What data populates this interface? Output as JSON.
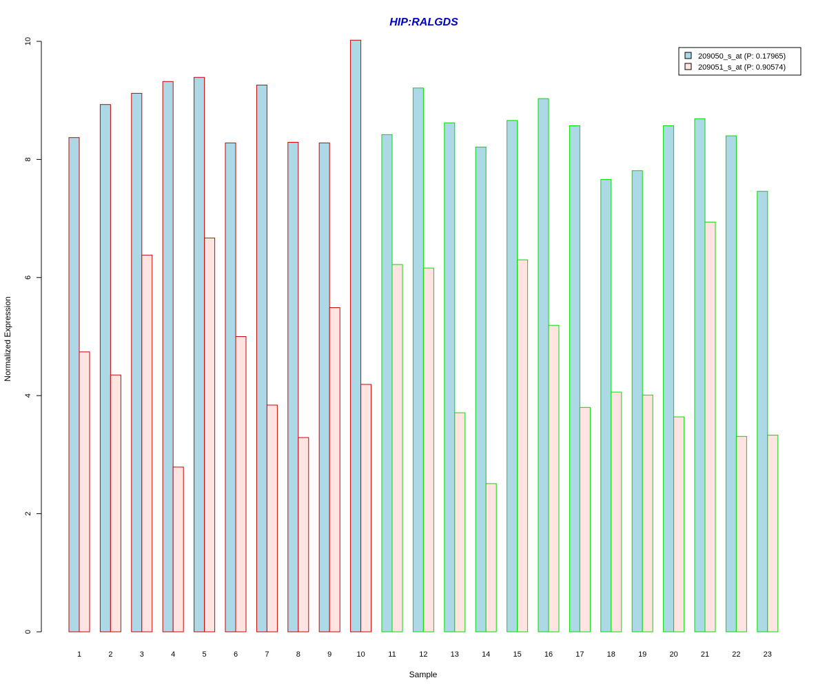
{
  "colors": {
    "series_fills": [
      "#add8e6",
      "#ffe4e1"
    ],
    "group_borders": [
      "#cc0000",
      "#00dd00"
    ],
    "title_color": "#0000cc",
    "axis": "#000000",
    "background": "#ffffff"
  },
  "chart_data": {
    "type": "bar",
    "title": "HIP:RALGDS",
    "xlabel": "Sample",
    "ylabel": "Normalized Expression",
    "ylim": [
      0,
      10
    ],
    "yticks": [
      "0",
      "2",
      "4",
      "6",
      "8",
      "10"
    ],
    "grid": false,
    "legend_position": "top-right",
    "categories": [
      "1",
      "2",
      "3",
      "4",
      "5",
      "6",
      "7",
      "8",
      "9",
      "10",
      "11",
      "12",
      "13",
      "14",
      "15",
      "16",
      "17",
      "18",
      "19",
      "20",
      "21",
      "22",
      "23"
    ],
    "series": [
      {
        "name": "209050_s_at (P: 0.17965)",
        "values": [
          8.37,
          8.93,
          9.12,
          9.32,
          9.39,
          8.28,
          9.26,
          8.29,
          8.28,
          10.02,
          8.42,
          9.21,
          8.62,
          8.21,
          8.66,
          9.03,
          8.57,
          7.66,
          7.81,
          8.57,
          8.69,
          8.4,
          7.46
        ]
      },
      {
        "name": "209051_s_at (P: 0.90574)",
        "values": [
          4.74,
          4.35,
          6.38,
          2.79,
          6.67,
          5.0,
          3.84,
          3.29,
          5.49,
          4.19,
          6.22,
          6.16,
          3.71,
          2.51,
          6.3,
          5.19,
          3.8,
          4.06,
          4.01,
          3.64,
          6.94,
          3.31,
          3.33
        ]
      }
    ],
    "group_index": [
      0,
      0,
      0,
      0,
      0,
      0,
      0,
      0,
      0,
      0,
      1,
      1,
      1,
      1,
      1,
      1,
      1,
      1,
      1,
      1,
      1,
      1,
      1
    ]
  }
}
